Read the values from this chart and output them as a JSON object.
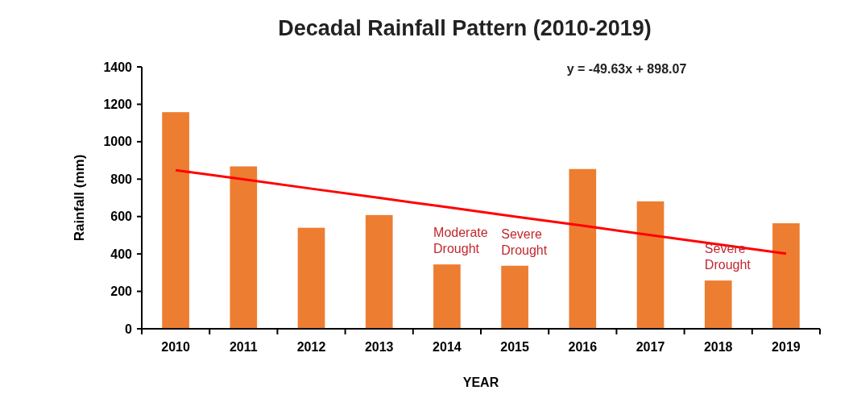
{
  "chart_data": {
    "type": "bar",
    "title": "Decadal Rainfall Pattern (2010-2019)",
    "xlabel": "YEAR",
    "ylabel": "Rainfall  (mm)",
    "categories": [
      "2010",
      "2011",
      "2012",
      "2013",
      "2014",
      "2015",
      "2016",
      "2017",
      "2018",
      "2019"
    ],
    "series": [
      {
        "color": "#ed7d31",
        "values": [
          1158,
          868,
          540,
          608,
          344,
          337,
          854,
          681,
          258,
          564
        ]
      },
      {
        "type": "line",
        "color": "#ff0000",
        "values": [
          848,
          799,
          749,
          700,
          650,
          600,
          551,
          501,
          451,
          402
        ]
      }
    ],
    "ylim": [
      0,
      1400
    ],
    "yticks": [
      0,
      200,
      400,
      600,
      800,
      1000,
      1200,
      1400
    ],
    "grid": false,
    "marker": "none",
    "line_style": "solid",
    "annotations": [
      "y = -49.63x + 898.07",
      {
        "text": "Moderate Drought",
        "x": "2014",
        "y": 344
      },
      {
        "text": "Severe Drought",
        "x": "2015",
        "y": 337
      },
      {
        "text": "Severe Drought",
        "x": "2018",
        "y": 258
      }
    ]
  }
}
